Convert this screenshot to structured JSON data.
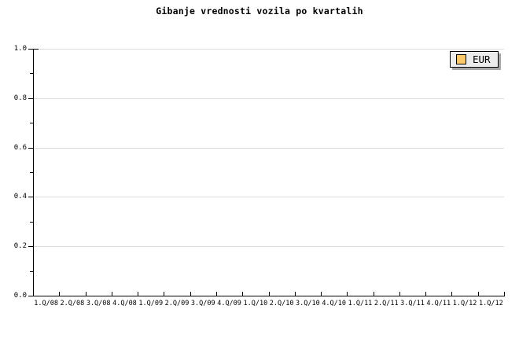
{
  "title": "Gibanje vrednosti vozila po kvartalih",
  "legend": {
    "position": "top-right",
    "items": [
      {
        "label": "EUR",
        "swatch_color": "#FCC96A"
      }
    ]
  },
  "colors": {
    "background": "#FFFFFF",
    "axis": "#000000",
    "gridline": "#DCDCDC",
    "text": "#000000",
    "legend_background": "#ECECEC",
    "legend_border": "#000000",
    "legend_shadow": "#A8A8A8",
    "series_eur": "#FCC96A"
  },
  "chart_data": {
    "type": "bar",
    "title": "Gibanje vrednosti vozila po kvartalih",
    "xlabel": "",
    "ylabel": "",
    "categories": [
      "1.Q/08",
      "2.Q/08",
      "3.Q/08",
      "4.Q/08",
      "1.Q/09",
      "2.Q/09",
      "3.Q/09",
      "4.Q/09",
      "1.Q/10",
      "2.Q/10",
      "3.Q/10",
      "4.Q/10",
      "1.Q/11",
      "2.Q/11",
      "3.Q/11",
      "4.Q/11",
      "1.Q/12",
      "1.Q/12"
    ],
    "series": [
      {
        "name": "EUR",
        "color": "#FCC96A",
        "values": []
      }
    ],
    "ylim": [
      0.0,
      1.0
    ],
    "y_ticks": [
      0.0,
      0.2,
      0.4,
      0.6,
      0.8,
      1.0
    ],
    "y_tick_labels": [
      "0.0",
      "0.2",
      "0.4",
      "0.6",
      "0.8",
      "1.0"
    ],
    "y_minor_ticks": [
      0.1,
      0.3,
      0.5,
      0.7,
      0.9
    ],
    "grid": "horizontal-major",
    "legend_position": "top-right",
    "plot_is_empty": true
  }
}
